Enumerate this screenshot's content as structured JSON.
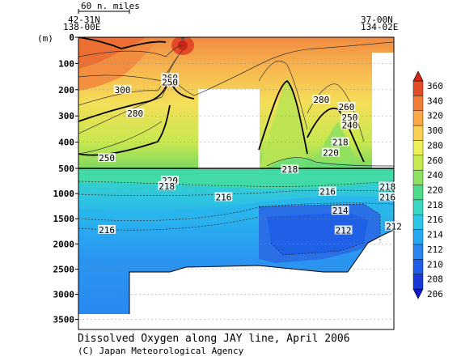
{
  "chart_data": {
    "type": "heatmap",
    "title": "Dissolved Oxygen along JAY line, April 2006",
    "credit": "(C) Japan Meteorological Agency",
    "scale_bar": "60 n. miles",
    "station_left": {
      "lat": "42-31N",
      "lon": "138-00E"
    },
    "station_right": {
      "lat": "37-00N",
      "lon": "134-02E"
    },
    "ylabel": "(m)",
    "y_ticks_upper": [
      "0",
      "100",
      "200",
      "300",
      "400",
      "500"
    ],
    "y_ticks_lower": [
      "1000",
      "1500",
      "2000",
      "2500",
      "3000",
      "3500"
    ],
    "ylim_upper": [
      0,
      500
    ],
    "ylim_lower": [
      500,
      3700
    ],
    "colorbar": {
      "levels": [
        206,
        208,
        210,
        212,
        214,
        216,
        218,
        220,
        240,
        260,
        280,
        300,
        320,
        340,
        360
      ],
      "colors": [
        "#1818c8",
        "#1838d8",
        "#1f5ee6",
        "#2a85f0",
        "#27a8f2",
        "#2ec6e6",
        "#3ad6c2",
        "#4ddc8e",
        "#8ee060",
        "#c8e850",
        "#eef058",
        "#fbd054",
        "#f8a848",
        "#f07c38",
        "#e04c28",
        "#d42418"
      ]
    },
    "contour_labels": [
      {
        "text": "300",
        "depth": 200,
        "pos": 0.14
      },
      {
        "text": "260",
        "depth": 155,
        "pos": 0.29
      },
      {
        "text": "250",
        "depth": 172,
        "pos": 0.29
      },
      {
        "text": "280",
        "depth": 290,
        "pos": 0.18
      },
      {
        "text": "250",
        "depth": 460,
        "pos": 0.09
      },
      {
        "text": "280",
        "depth": 238,
        "pos": 0.77
      },
      {
        "text": "260",
        "depth": 265,
        "pos": 0.85
      },
      {
        "text": "250",
        "depth": 305,
        "pos": 0.86
      },
      {
        "text": "240",
        "depth": 335,
        "pos": 0.86
      },
      {
        "text": "220",
        "depth": 440,
        "pos": 0.8
      },
      {
        "text": "218",
        "depth": 400,
        "pos": 0.83
      },
      {
        "text": "218",
        "depth": 520,
        "pos": 0.67
      },
      {
        "text": "220",
        "depth": 740,
        "pos": 0.29
      },
      {
        "text": "218",
        "depth": 850,
        "pos": 0.28
      },
      {
        "text": "216",
        "depth": 1070,
        "pos": 0.46
      },
      {
        "text": "216",
        "depth": 960,
        "pos": 0.79
      },
      {
        "text": "218",
        "depth": 860,
        "pos": 0.98
      },
      {
        "text": "216",
        "depth": 1070,
        "pos": 0.98
      },
      {
        "text": "214",
        "depth": 1340,
        "pos": 0.83
      },
      {
        "text": "216",
        "depth": 1720,
        "pos": 0.09
      },
      {
        "text": "212",
        "depth": 1730,
        "pos": 0.84
      },
      {
        "text": "212",
        "depth": 1650,
        "pos": 1.0
      }
    ]
  }
}
